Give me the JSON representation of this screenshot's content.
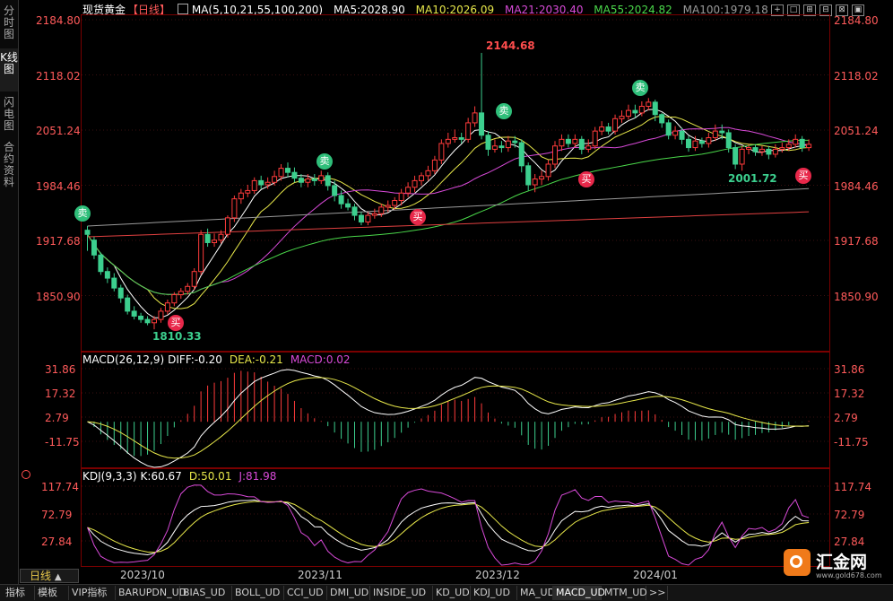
{
  "left_tabs": [
    "分时图",
    "K线图",
    "闪电图",
    "合约资料"
  ],
  "main": {
    "title": "现货黄金",
    "period": "【日线】",
    "ma_params": "MA(5,10,21,55,100,200)",
    "ma5": "MA5:2028.90",
    "ma10": "MA10:2026.09",
    "ma21": "MA21:2030.40",
    "ma55": "MA55:2024.82",
    "ma100": "MA100:1979.18",
    "y_ticks": [
      "2184.80",
      "2118.02",
      "2051.24",
      "1984.46",
      "1917.68",
      "1850.90"
    ],
    "high_label": "2144.68",
    "low_label": "1810.33",
    "low2_label": "2001.72",
    "sell_mark": "卖",
    "buy_mark": "买",
    "colors": {
      "up": "#ff3b3b",
      "down": "#3ccf8e",
      "ma5": "#ffffff",
      "ma10": "#e8e84a",
      "ma21": "#d84ad8",
      "ma55": "#4ad84a",
      "ma100": "#9a9a9a",
      "ma200": "#e04040"
    }
  },
  "macd": {
    "params": "MACD(26,12,9)",
    "diff": "DIFF:-0.20",
    "dea": "DEA:-0.21",
    "macd": "MACD:0.02",
    "y_ticks": [
      "31.86",
      "17.32",
      "2.79",
      "-11.75"
    ]
  },
  "kdj": {
    "params": "KDJ(9,3,3)",
    "k": "K:60.67",
    "d": "D:50.01",
    "j": "J:81.98",
    "y_ticks": [
      "117.74",
      "72.79",
      "27.84"
    ],
    "x_ticks": [
      "2023/10",
      "2023/11",
      "2023/12",
      "2024/01"
    ]
  },
  "period_label": "日线",
  "period_arrow": "▲",
  "logo": {
    "text": "汇金网",
    "sub": "www.gold678.com"
  },
  "bottom_tabs": [
    "指标",
    "模板",
    "VIP指标",
    "BARUPDN_UD",
    "BIAS_UD",
    "BOLL_UD",
    "CCI_UD",
    "DMI_UD",
    "INSIDE_UD",
    "KD_UD",
    "KDJ_UD",
    "MA_UD",
    "MACD_UD",
    "MTM_UD",
    ">>"
  ],
  "bottom_active": "MACD_UD",
  "window_icons": [
    "+",
    "□",
    "⊞",
    "⊟",
    "⊠",
    "▣"
  ],
  "chart_data": {
    "type": "candlestick",
    "title": "现货黄金 日线",
    "x": [
      "2023/10",
      "2023/11",
      "2023/12",
      "2024/01"
    ],
    "ylim": [
      1784,
      2200
    ],
    "candles": [
      [
        1930,
        1925,
        1935,
        1905
      ],
      [
        1918,
        1900,
        1922,
        1895
      ],
      [
        1900,
        1880,
        1903,
        1876
      ],
      [
        1880,
        1872,
        1885,
        1866
      ],
      [
        1872,
        1860,
        1878,
        1856
      ],
      [
        1860,
        1848,
        1864,
        1842
      ],
      [
        1848,
        1832,
        1852,
        1828
      ],
      [
        1832,
        1826,
        1838,
        1822
      ],
      [
        1826,
        1822,
        1830,
        1818
      ],
      [
        1822,
        1818,
        1826,
        1815
      ],
      [
        1818,
        1822,
        1826,
        1810
      ],
      [
        1822,
        1832,
        1836,
        1818
      ],
      [
        1832,
        1842,
        1846,
        1828
      ],
      [
        1842,
        1852,
        1855,
        1838
      ],
      [
        1852,
        1856,
        1860,
        1847
      ],
      [
        1856,
        1862,
        1866,
        1852
      ],
      [
        1862,
        1880,
        1884,
        1858
      ],
      [
        1880,
        1925,
        1930,
        1876
      ],
      [
        1925,
        1915,
        1932,
        1910
      ],
      [
        1915,
        1918,
        1926,
        1910
      ],
      [
        1918,
        1925,
        1930,
        1914
      ],
      [
        1925,
        1945,
        1948,
        1921
      ],
      [
        1945,
        1968,
        1972,
        1940
      ],
      [
        1968,
        1975,
        1980,
        1962
      ],
      [
        1975,
        1978,
        1985,
        1970
      ],
      [
        1978,
        1990,
        1994,
        1974
      ],
      [
        1990,
        1985,
        1996,
        1980
      ],
      [
        1985,
        1988,
        1994,
        1980
      ],
      [
        1988,
        1995,
        2002,
        1984
      ],
      [
        1995,
        2005,
        2010,
        1990
      ],
      [
        2005,
        2000,
        2012,
        1994
      ],
      [
        2000,
        1993,
        2006,
        1988
      ],
      [
        1993,
        1988,
        1998,
        1982
      ],
      [
        1988,
        1992,
        1998,
        1982
      ],
      [
        1992,
        1990,
        1998,
        1984
      ],
      [
        1990,
        1996,
        2002,
        1986
      ],
      [
        1996,
        1984,
        2000,
        1978
      ],
      [
        1984,
        1972,
        1990,
        1965
      ],
      [
        1972,
        1962,
        1978,
        1956
      ],
      [
        1962,
        1958,
        1968,
        1954
      ],
      [
        1958,
        1948,
        1962,
        1942
      ],
      [
        1948,
        1940,
        1952,
        1936
      ],
      [
        1940,
        1948,
        1952,
        1936
      ],
      [
        1948,
        1950,
        1956,
        1944
      ],
      [
        1950,
        1958,
        1962,
        1946
      ],
      [
        1958,
        1960,
        1966,
        1952
      ],
      [
        1960,
        1966,
        1970,
        1955
      ],
      [
        1966,
        1975,
        1980,
        1960
      ],
      [
        1975,
        1982,
        1988,
        1970
      ],
      [
        1982,
        1990,
        1996,
        1976
      ],
      [
        1990,
        1996,
        2000,
        1984
      ],
      [
        1996,
        2002,
        2008,
        1990
      ],
      [
        2002,
        2015,
        2020,
        1998
      ],
      [
        2015,
        2035,
        2040,
        2010
      ],
      [
        2035,
        2040,
        2048,
        2030
      ],
      [
        2040,
        2042,
        2052,
        2036
      ],
      [
        2042,
        2040,
        2048,
        2035
      ],
      [
        2040,
        2060,
        2066,
        2036
      ],
      [
        2060,
        2072,
        2080,
        2055
      ],
      [
        2072,
        2045,
        2144.68,
        2040
      ],
      [
        2045,
        2028,
        2050,
        2020
      ],
      [
        2028,
        2032,
        2040,
        2024
      ],
      [
        2032,
        2030,
        2038,
        2024
      ],
      [
        2030,
        2038,
        2044,
        2025
      ],
      [
        2038,
        2036,
        2044,
        2030
      ],
      [
        2036,
        2008,
        2040,
        2000
      ],
      [
        2008,
        1985,
        2012,
        1978
      ],
      [
        1985,
        1992,
        1998,
        1976
      ],
      [
        1992,
        1995,
        2002,
        1985
      ],
      [
        1995,
        2010,
        2015,
        1990
      ],
      [
        2010,
        2032,
        2038,
        2005
      ],
      [
        2032,
        2040,
        2046,
        2026
      ],
      [
        2040,
        2035,
        2046,
        2030
      ],
      [
        2035,
        2040,
        2046,
        2030
      ],
      [
        2040,
        2028,
        2044,
        2022
      ],
      [
        2028,
        2032,
        2040,
        2024
      ],
      [
        2032,
        2050,
        2055,
        2028
      ],
      [
        2050,
        2055,
        2062,
        2045
      ],
      [
        2055,
        2050,
        2060,
        2046
      ],
      [
        2050,
        2065,
        2070,
        2046
      ],
      [
        2065,
        2068,
        2075,
        2060
      ],
      [
        2068,
        2075,
        2082,
        2064
      ],
      [
        2075,
        2072,
        2082,
        2066
      ],
      [
        2072,
        2080,
        2086,
        2068
      ],
      [
        2080,
        2085,
        2090,
        2075
      ],
      [
        2085,
        2070,
        2088,
        2062
      ],
      [
        2070,
        2060,
        2072,
        2054
      ],
      [
        2060,
        2045,
        2064,
        2040
      ],
      [
        2045,
        2050,
        2056,
        2040
      ],
      [
        2050,
        2040,
        2054,
        2034
      ],
      [
        2040,
        2030,
        2044,
        2025
      ],
      [
        2030,
        2038,
        2044,
        2026
      ],
      [
        2038,
        2035,
        2042,
        2030
      ],
      [
        2035,
        2042,
        2048,
        2030
      ],
      [
        2042,
        2050,
        2058,
        2038
      ],
      [
        2050,
        2048,
        2058,
        2040
      ],
      [
        2048,
        2030,
        2052,
        2024
      ],
      [
        2030,
        2010,
        2034,
        2004
      ],
      [
        2010,
        2028,
        2032,
        2002
      ],
      [
        2028,
        2030,
        2034,
        2022
      ],
      [
        2030,
        2025,
        2034,
        2020
      ],
      [
        2025,
        2028,
        2032,
        2020
      ],
      [
        2028,
        2022,
        2032,
        2016
      ],
      [
        2022,
        2028,
        2034,
        2018
      ],
      [
        2028,
        2030,
        2036,
        2024
      ],
      [
        2030,
        2034,
        2040,
        2026
      ],
      [
        2034,
        2040,
        2046,
        2030
      ],
      [
        2040,
        2030,
        2044,
        2025
      ],
      [
        2030,
        2034,
        2040,
        2026
      ]
    ]
  }
}
